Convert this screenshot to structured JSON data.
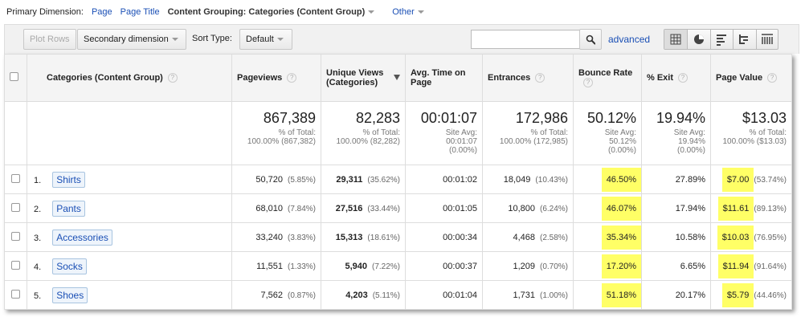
{
  "toolbar": {
    "primary_dimension_label": "Primary Dimension:",
    "options": [
      "Page",
      "Page Title"
    ],
    "content_grouping": "Content Grouping: Categories (Content Group)",
    "other": "Other"
  },
  "controls": {
    "plot_rows": "Plot Rows",
    "secondary_dimension": "Secondary dimension",
    "sort_type_label": "Sort Type:",
    "sort_type": "Default",
    "advanced": "advanced"
  },
  "table": {
    "columns": [
      "Categories (Content Group)",
      "Pageviews",
      "Unique Views (Categories)",
      "Avg. Time on Page",
      "Entrances",
      "Bounce Rate",
      "% Exit",
      "Page Value"
    ],
    "totals": [
      {
        "value": "867,389",
        "lines": [
          "% of Total:",
          "100.00% (867,382)"
        ]
      },
      {
        "value": "82,283",
        "lines": [
          "% of Total:",
          "100.00% (82,282)"
        ]
      },
      {
        "value": "00:01:07",
        "lines": [
          "Site Avg:",
          "00:01:07",
          "(0.00%)"
        ]
      },
      {
        "value": "172,986",
        "lines": [
          "% of Total:",
          "100.00% (172,985)"
        ]
      },
      {
        "value": "50.12%",
        "lines": [
          "Site Avg:",
          "50.12%",
          "(0.00%)"
        ]
      },
      {
        "value": "19.94%",
        "lines": [
          "Site Avg:",
          "19.94%",
          "(0.00%)"
        ]
      },
      {
        "value": "$13.03",
        "lines": [
          "% of Total:",
          "100.00% ($13.03)"
        ]
      }
    ],
    "rows": [
      {
        "index": "1.",
        "name": "Shirts",
        "cells": [
          [
            "50,720",
            "(5.85%)"
          ],
          [
            "29,311",
            "(35.62%)"
          ],
          [
            "00:01:02"
          ],
          [
            "18,049",
            "(10.43%)"
          ],
          [
            "46.50%"
          ],
          [
            "27.89%"
          ],
          [
            "$7.00",
            "(53.74%)"
          ]
        ]
      },
      {
        "index": "2.",
        "name": "Pants",
        "cells": [
          [
            "68,010",
            "(7.84%)"
          ],
          [
            "27,516",
            "(33.44%)"
          ],
          [
            "00:01:05"
          ],
          [
            "10,800",
            "(6.24%)"
          ],
          [
            "46.07%"
          ],
          [
            "17.94%"
          ],
          [
            "$11.61",
            "(89.13%)"
          ]
        ]
      },
      {
        "index": "3.",
        "name": "Accessories",
        "cells": [
          [
            "33,240",
            "(3.83%)"
          ],
          [
            "15,313",
            "(18.61%)"
          ],
          [
            "00:00:34"
          ],
          [
            "4,468",
            "(2.58%)"
          ],
          [
            "35.34%"
          ],
          [
            "10.58%"
          ],
          [
            "$10.03",
            "(76.95%)"
          ]
        ]
      },
      {
        "index": "4.",
        "name": "Socks",
        "cells": [
          [
            "11,551",
            "(1.33%)"
          ],
          [
            "5,940",
            "(7.22%)"
          ],
          [
            "00:00:37"
          ],
          [
            "1,209",
            "(0.70%)"
          ],
          [
            "17.20%"
          ],
          [
            "6.65%"
          ],
          [
            "$11.94",
            "(91.64%)"
          ]
        ]
      },
      {
        "index": "5.",
        "name": "Shoes",
        "cells": [
          [
            "7,562",
            "(0.87%)"
          ],
          [
            "4,203",
            "(5.11%)"
          ],
          [
            "00:01:04"
          ],
          [
            "1,731",
            "(1.00%)"
          ],
          [
            "51.18%"
          ],
          [
            "20.17%"
          ],
          [
            "$5.79",
            "(44.46%)"
          ]
        ]
      }
    ]
  }
}
